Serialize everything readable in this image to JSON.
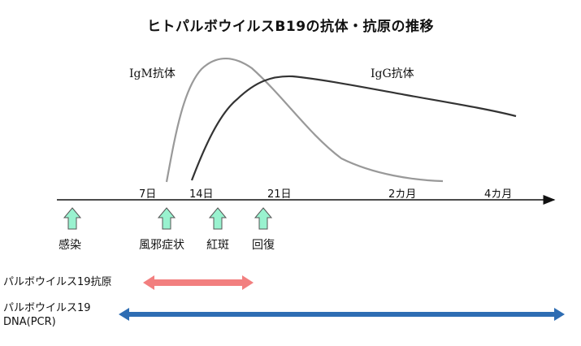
{
  "title": "ヒトパルボウイルスB19の抗体・抗原の推移",
  "curves": {
    "igm": {
      "label": "IgM抗体",
      "color": "#999999"
    },
    "igg": {
      "label": "IgG抗体",
      "color": "#333333"
    }
  },
  "timeline": {
    "ticks": [
      "7日",
      "14日",
      "21日",
      "2カ月",
      "4カ月"
    ]
  },
  "events": {
    "color": "#99f2cf",
    "items": [
      "感染",
      "風邪症状",
      "紅斑",
      "回復"
    ]
  },
  "rows": {
    "antigen": {
      "label": "パルボウイルス19抗原",
      "color": "#f27f7f"
    },
    "dna": {
      "label_line1": "パルボウイルス19",
      "label_line2": "DNA(PCR)",
      "color": "#2e6db3"
    }
  }
}
